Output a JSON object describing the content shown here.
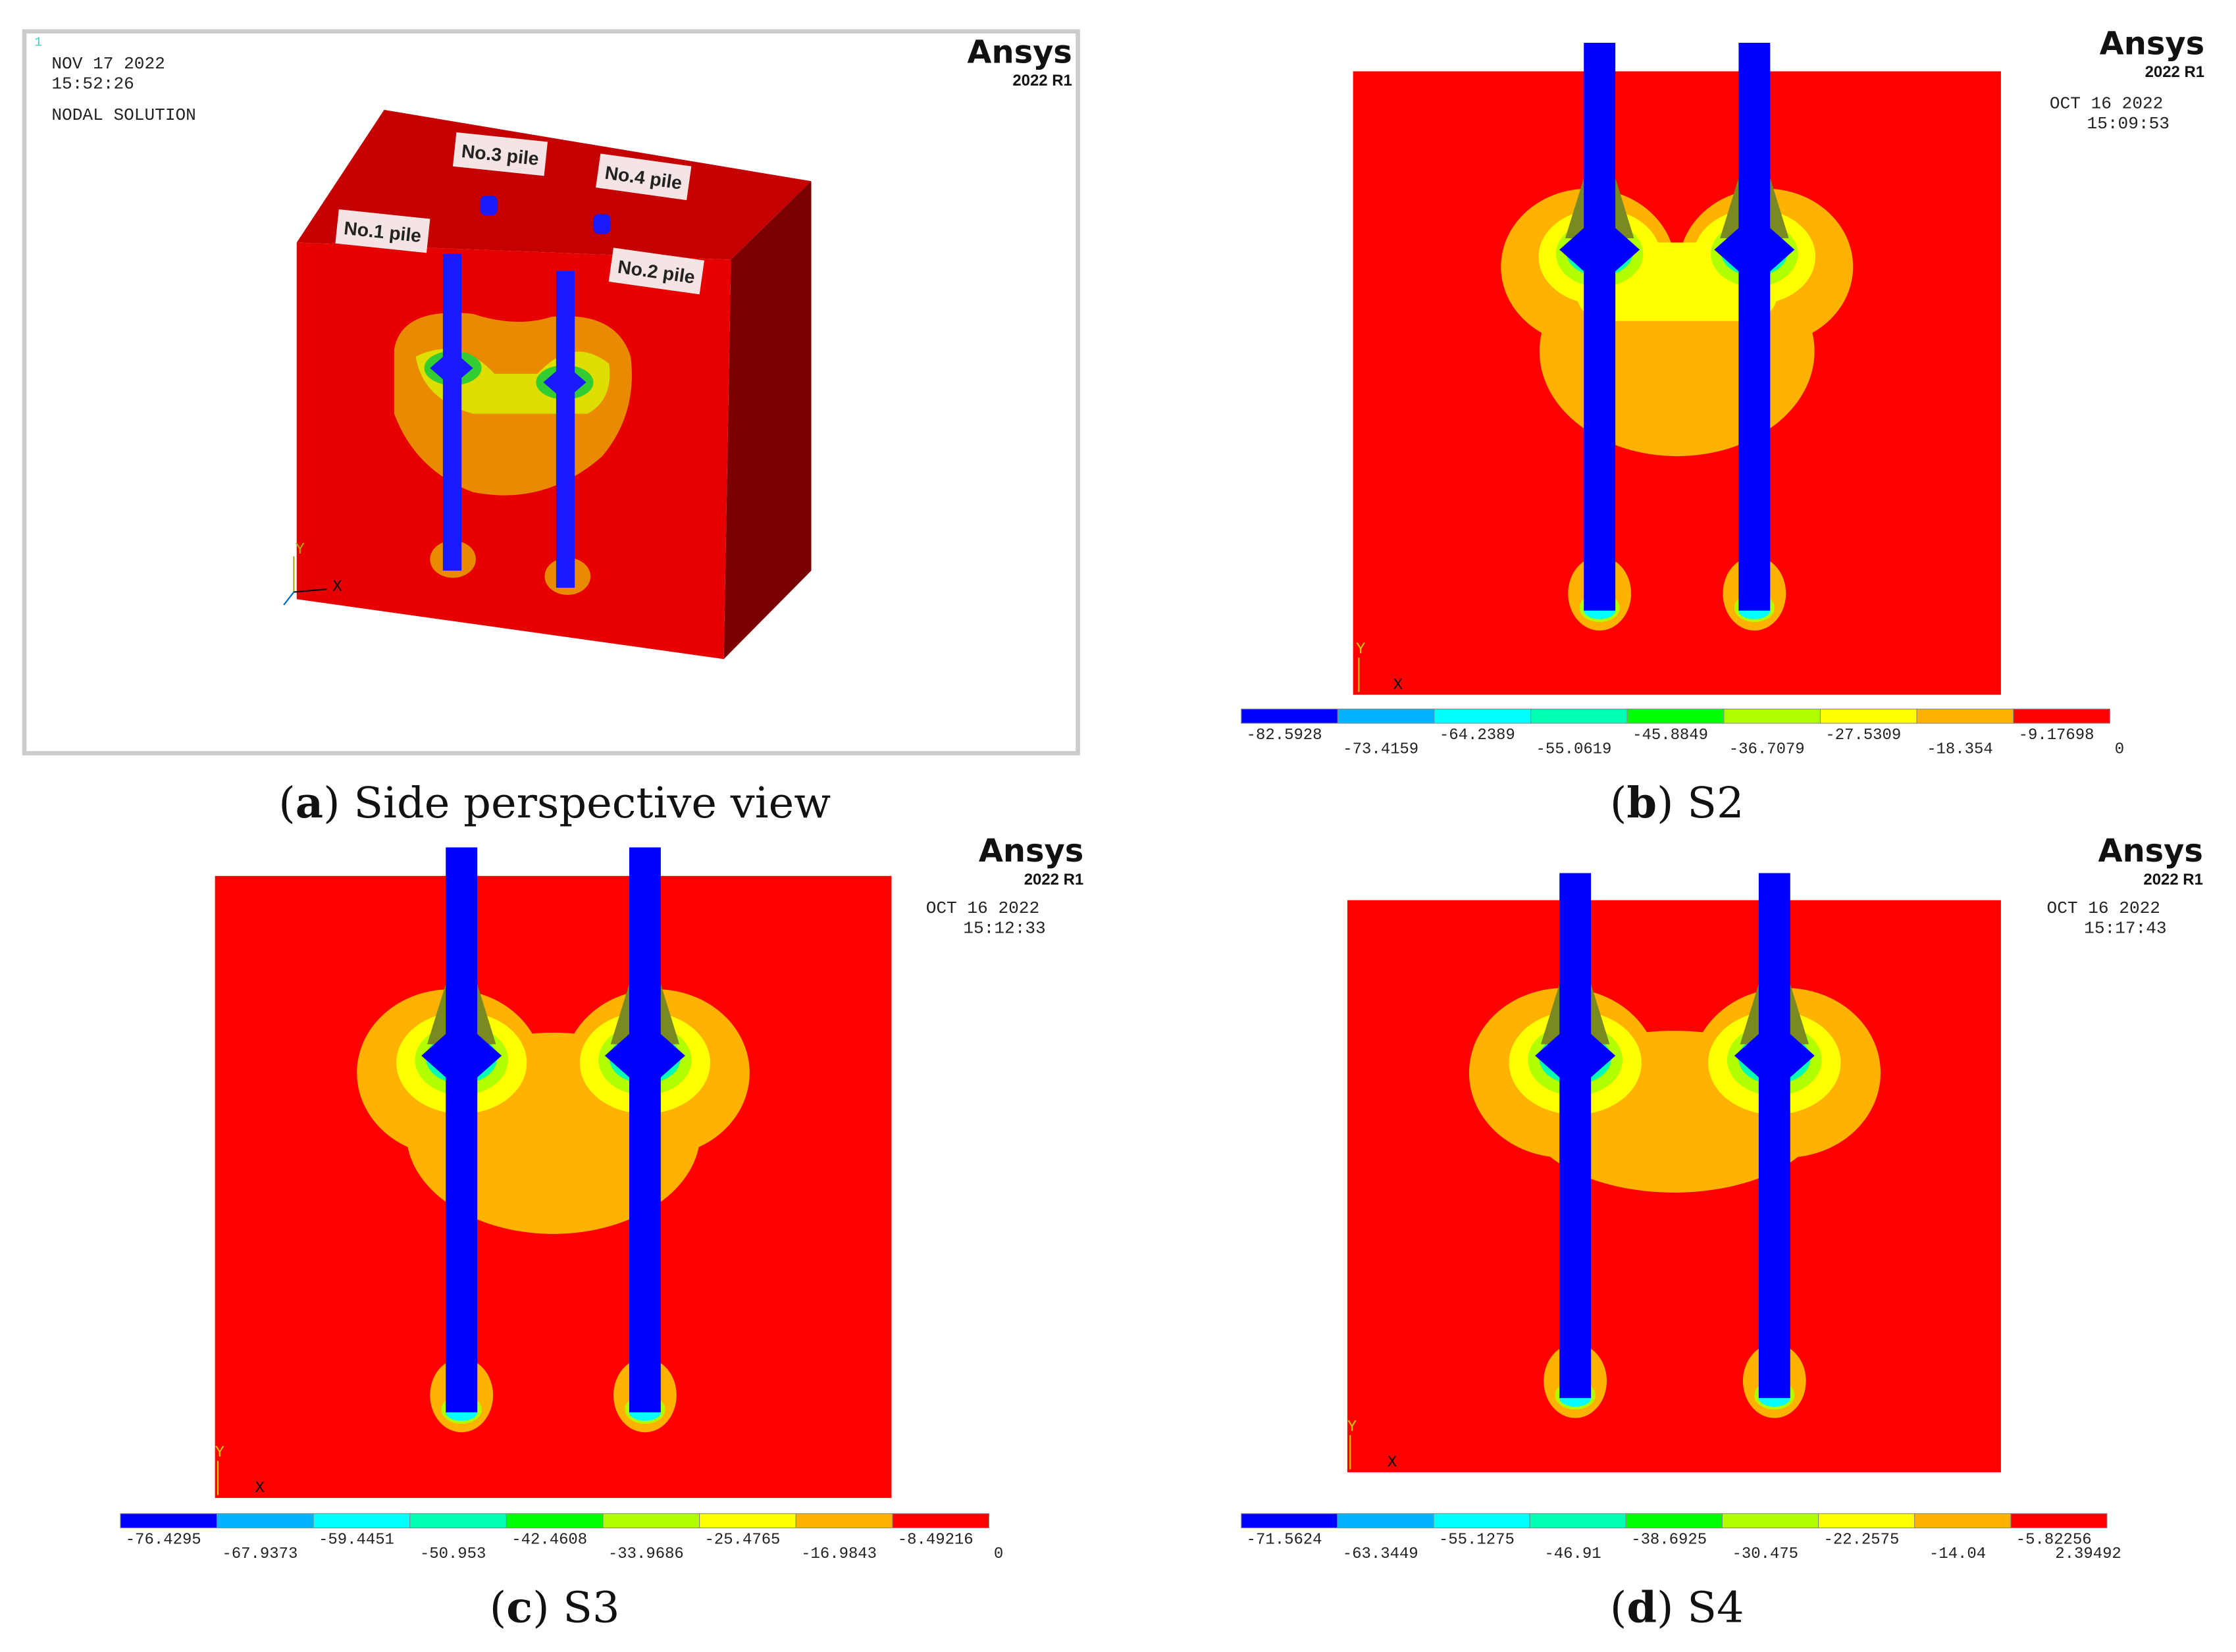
{
  "panels": [
    {
      "caption": {
        "prefix": "(",
        "letter": "a",
        "suffix": ") Side perspective view"
      },
      "corner": "1",
      "logo": "Ansys",
      "version": "2022 R1",
      "date": "NOV 17 2022",
      "time": "15:52:26",
      "title": "NODAL SOLUTION",
      "piles": [
        "No.1 pile",
        "No.2 pile",
        "No.3 pile",
        "No.4 pile"
      ],
      "axes": [
        "Y",
        "X"
      ]
    },
    {
      "caption": {
        "prefix": "(",
        "letter": "b",
        "suffix": ") S2"
      },
      "logo": "Ansys",
      "version": "2022 R1",
      "date": "OCT 16 2022",
      "time": "15:09:53",
      "axes": [
        "Y",
        "X"
      ],
      "colorbar": {
        "colors": [
          "#0000ff",
          "#00b2ff",
          "#00ffff",
          "#00ffb2",
          "#00ff00",
          "#b2ff00",
          "#ffff00",
          "#ffb200",
          "#ff0000"
        ],
        "labels": [
          "-82.5928",
          "-73.4159",
          "-64.2389",
          "-55.0619",
          "-45.8849",
          "-36.7079",
          "-27.5309",
          "-18.354",
          "-9.17698",
          "0"
        ]
      }
    },
    {
      "caption": {
        "prefix": "(",
        "letter": "c",
        "suffix": ") S3"
      },
      "logo": "Ansys",
      "version": "2022 R1",
      "date": "OCT 16 2022",
      "time": "15:12:33",
      "axes": [
        "Y",
        "X"
      ],
      "colorbar": {
        "colors": [
          "#0000ff",
          "#00b2ff",
          "#00ffff",
          "#00ffb2",
          "#00ff00",
          "#b2ff00",
          "#ffff00",
          "#ffb200",
          "#ff0000"
        ],
        "labels": [
          "-76.4295",
          "-67.9373",
          "-59.4451",
          "-50.953",
          "-42.4608",
          "-33.9686",
          "-25.4765",
          "-16.9843",
          "-8.49216",
          "0"
        ]
      }
    },
    {
      "caption": {
        "prefix": "(",
        "letter": "d",
        "suffix": ") S4"
      },
      "logo": "Ansys",
      "version": "2022 R1",
      "date": "OCT 16 2022",
      "time": "15:17:43",
      "axes": [
        "Y",
        "X"
      ],
      "colorbar": {
        "colors": [
          "#0000ff",
          "#00b2ff",
          "#00ffff",
          "#00ffb2",
          "#00ff00",
          "#b2ff00",
          "#ffff00",
          "#ffb200",
          "#ff0000"
        ],
        "labels": [
          "-71.5624",
          "-63.3449",
          "-55.1275",
          "-46.91",
          "-38.6925",
          "-30.475",
          "-22.2575",
          "-14.04",
          "-5.82256",
          "2.39492"
        ]
      }
    }
  ]
}
